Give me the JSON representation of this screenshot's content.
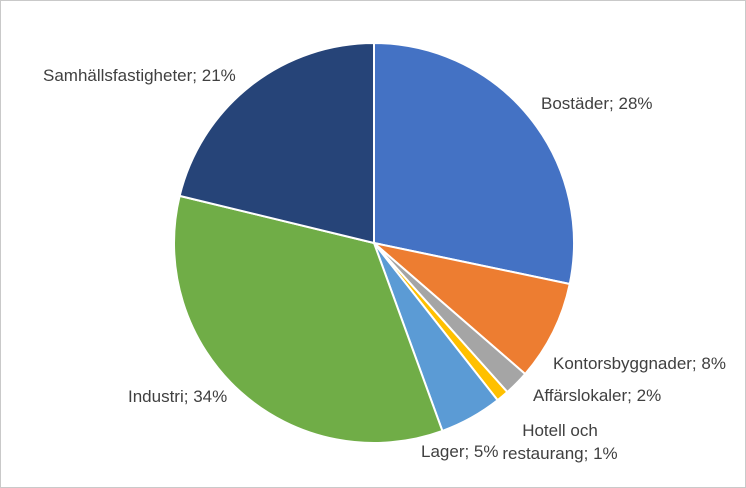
{
  "chart_data": {
    "type": "pie",
    "title": "",
    "categories": [
      "Bostäder",
      "Kontorsbyggnader",
      "Affärslokaler",
      "Hotell och restaurang",
      "Lager",
      "Industri",
      "Samhällsfastigheter"
    ],
    "values": [
      28,
      8,
      2,
      1,
      5,
      34,
      21
    ],
    "unit": "%",
    "labels": [
      "Bostäder; 28%",
      "Kontorsbyggnader; 8%",
      "Affärslokaler; 2%",
      "Hotell och restaurang; 1%",
      "Lager; 5%",
      "Industri; 34%",
      "Samhällsfastigheter; 21%"
    ],
    "colors": [
      "#4472C4",
      "#ED7D31",
      "#A5A5A5",
      "#FFC000",
      "#5B9BD5",
      "#70AD47",
      "#264478"
    ],
    "start_angle_deg": 0,
    "direction": "clockwise",
    "legend": "none",
    "label_position": "outside-end",
    "slice_separator_color": "#FFFFFF"
  },
  "styles": {
    "label_color": "#404040",
    "background": "#FFFFFF",
    "frame_border_color": "#C9C9C9"
  }
}
